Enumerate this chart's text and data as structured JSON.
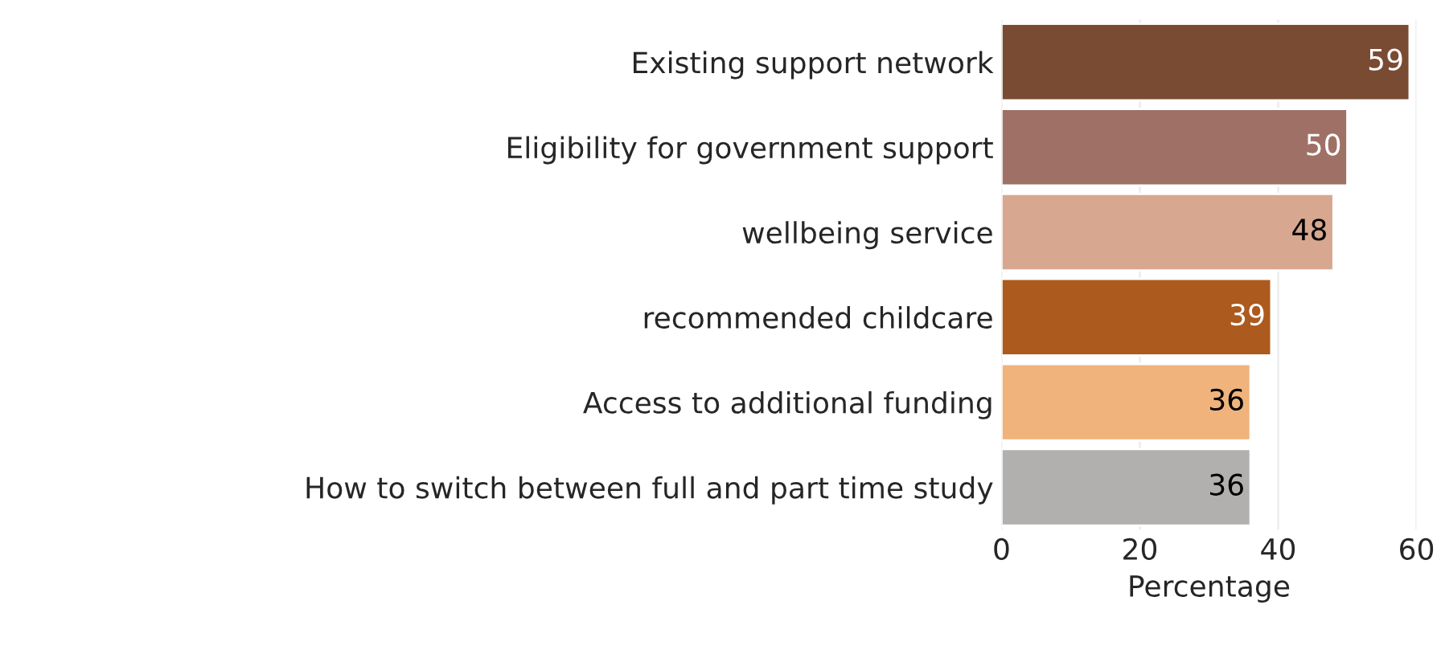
{
  "chart_data": {
    "type": "bar",
    "orientation": "horizontal",
    "categories": [
      "Existing support network",
      "Eligibility for government support",
      "wellbeing service",
      "recommended childcare",
      "Access to additional funding",
      "How to switch between full and part time study"
    ],
    "values": [
      59,
      50,
      48,
      39,
      36,
      36
    ],
    "colors": [
      "#7a4b33",
      "#9f7166",
      "#d7a88f",
      "#ac5a1e",
      "#f0b37c",
      "#b2b0ae"
    ],
    "xlabel": "Percentage",
    "xlim": [
      0,
      60
    ],
    "xticks": [
      0,
      20,
      40,
      60
    ],
    "grid": "x",
    "data_labels": true
  }
}
